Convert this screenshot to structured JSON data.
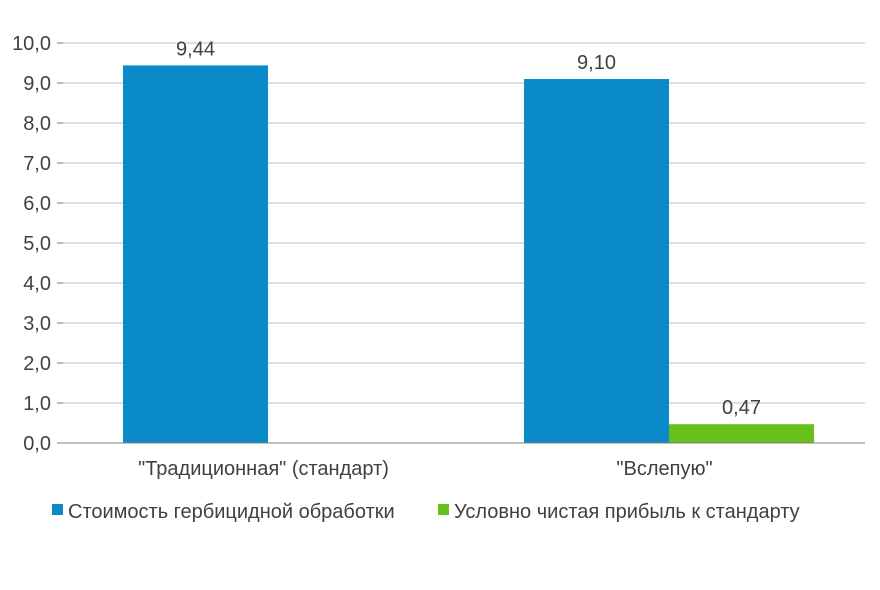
{
  "chart_data": {
    "type": "bar",
    "categories": [
      "\"Традиционная\" (стандарт)",
      "\"Вслепую\""
    ],
    "series": [
      {
        "name": "Стоимость гербицидной обработки",
        "values": [
          9.44,
          9.1
        ],
        "labels": [
          "9,44",
          "9,10"
        ],
        "color": "#0a8ac8"
      },
      {
        "name": "Условно чистая прибыль к стандарту",
        "values": [
          null,
          0.47
        ],
        "labels": [
          "",
          "0,47"
        ],
        "color": "#66c21a"
      }
    ],
    "yticks": [
      "0,0",
      "1,0",
      "2,0",
      "3,0",
      "4,0",
      "5,0",
      "6,0",
      "7,0",
      "8,0",
      "9,0",
      "10,0"
    ],
    "ylim": [
      0,
      10
    ],
    "grid": true,
    "legend_position": "bottom"
  }
}
